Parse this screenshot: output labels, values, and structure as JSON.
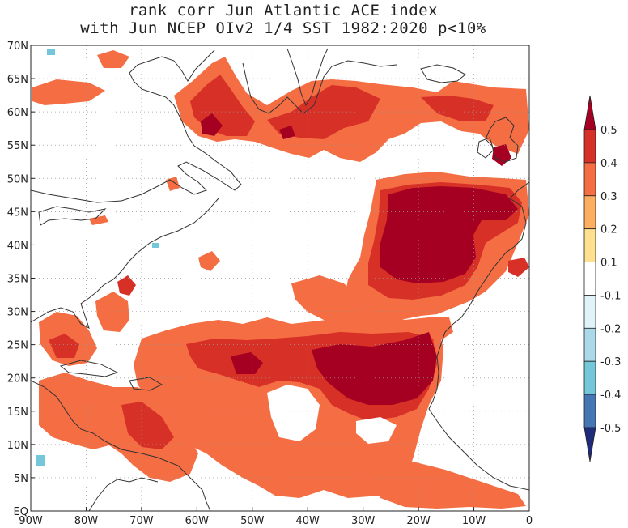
{
  "title": {
    "line1": "rank corr Jun Atlantic ACE index",
    "line2": "with Jun NCEP OIv2 1/4 SST 1982:2020 p<10%"
  },
  "map": {
    "lon_range": [
      -90,
      0
    ],
    "lat_range": [
      0,
      70
    ],
    "lon_ticks": [
      "90W",
      "80W",
      "70W",
      "60W",
      "50W",
      "40W",
      "30W",
      "20W",
      "10W",
      "0"
    ],
    "lat_ticks": [
      "EQ",
      "5N",
      "10N",
      "15N",
      "20N",
      "25N",
      "30N",
      "35N",
      "40N",
      "45N",
      "50N",
      "55N",
      "60N",
      "65N",
      "70N"
    ],
    "grid": "dotted",
    "projection": "lat-lon"
  },
  "colorbar": {
    "levels": [
      "0.5",
      "0.4",
      "0.3",
      "0.2",
      "0.1",
      "-0.1",
      "-0.2",
      "-0.3",
      "-0.4",
      "-0.5"
    ],
    "colors": [
      "#a50022",
      "#d73027",
      "#f46d43",
      "#fdae61",
      "#fee090",
      "#ffffff",
      "#e0f3f8",
      "#abd9e9",
      "#74c7d9",
      "#4575b4",
      "#1f2a7a"
    ],
    "extend": "both"
  },
  "colors": {
    "land_outline": "#333333",
    "grid": "#999999",
    "frame": "#222222"
  }
}
